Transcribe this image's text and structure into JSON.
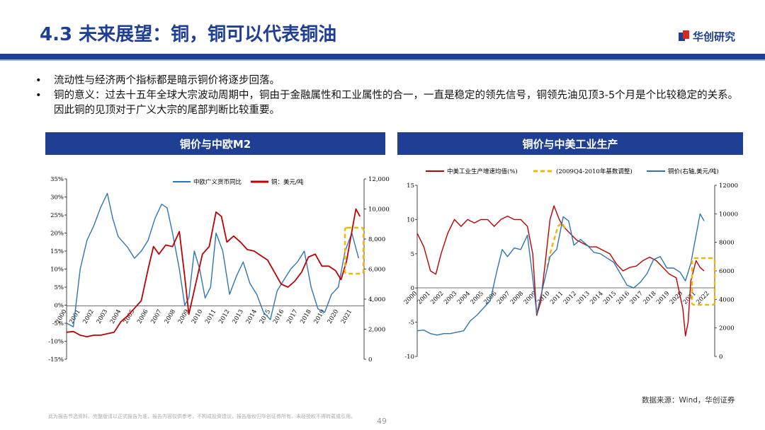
{
  "header": {
    "title": "4.3 未来展望：铜，铜可以代表铜油",
    "logo_text": "华创研究"
  },
  "bullets": [
    "流动性与经济两个指标都是暗示铜价将逐步回落。",
    "铜的意义：过去十五年全球大宗波动周期中，铜由于金融属性和工业属性的合一，一直是稳定的领先信号，铜领先油见顶3-5个月是个比较稳定的关系。因此铜的见顶对于广义大宗的尾部判断比较重要。"
  ],
  "panels": {
    "left_title": "铜价与中欧M2",
    "right_title": "铜价与中美工业生产"
  },
  "colors": {
    "blue": "#2e75b6",
    "red": "#c00000",
    "yellow": "#f2b705",
    "brand": "#1f3f95"
  },
  "chart_data": [
    {
      "type": "line",
      "x_ticks": [
        "2000",
        "2001",
        "2002",
        "2003",
        "2004",
        "2005",
        "2006",
        "2007",
        "2008",
        "2009",
        "2010",
        "2011",
        "2012",
        "2013",
        "2014",
        "2015",
        "2016",
        "2017",
        "2018",
        "2019",
        "2020",
        "2021"
      ],
      "y_left": {
        "ticks": [
          "-15%",
          "-10%",
          "-5%",
          "0%",
          "5%",
          "10%",
          "15%",
          "20%",
          "25%",
          "30%",
          "35%"
        ],
        "range": [
          -15,
          35
        ]
      },
      "y_right": {
        "ticks": [
          "0",
          "2,000",
          "4,000",
          "6,000",
          "8,000",
          "10,000",
          "12,000"
        ],
        "range": [
          0,
          12000
        ]
      },
      "series": [
        {
          "name": "中欧广义货币同比",
          "axis": "left",
          "color": "#2e75b6",
          "x": [
            2000,
            2000.5,
            2001,
            2001.5,
            2002,
            2002.5,
            2003,
            2003.4,
            2003.8,
            2004.5,
            2005,
            2005.5,
            2006,
            2006.5,
            2007,
            2007.4,
            2007.8,
            2008.3,
            2008.7,
            2009,
            2009.4,
            2009.8,
            2010.2,
            2010.6,
            2011,
            2011.5,
            2012,
            2012.5,
            2013,
            2013.5,
            2014,
            2014.5,
            2015,
            2015.5,
            2016,
            2016.5,
            2017,
            2017.5,
            2018,
            2018.5,
            2019,
            2019.5,
            2020,
            2020.5,
            2021,
            2021.5
          ],
          "values": [
            -5,
            -6,
            10,
            18,
            22,
            27,
            31,
            24,
            19,
            16,
            13,
            15,
            18,
            24,
            28,
            27,
            20,
            10,
            0,
            2,
            15,
            10,
            2,
            5,
            20,
            15,
            3,
            8,
            12,
            6,
            3,
            -2,
            -4,
            4,
            7,
            10,
            12,
            15,
            5,
            -1,
            -2,
            3,
            5,
            15,
            20,
            13
          ]
        },
        {
          "name": "铜：美元/吨",
          "axis": "right",
          "color": "#c00000",
          "x": [
            2000,
            2000.5,
            2001,
            2001.5,
            2002,
            2002.5,
            2003,
            2003.5,
            2004,
            2004.5,
            2005,
            2005.5,
            2006,
            2006.4,
            2006.8,
            2007.3,
            2007.8,
            2008.3,
            2008.7,
            2009,
            2009.5,
            2010,
            2010.5,
            2011,
            2011.4,
            2011.8,
            2012.3,
            2012.8,
            2013.3,
            2013.8,
            2014.3,
            2014.8,
            2015.3,
            2015.8,
            2016.3,
            2016.8,
            2017.3,
            2017.8,
            2018.3,
            2018.8,
            2019.3,
            2019.8,
            2020.2,
            2020.6,
            2021,
            2021.3,
            2021.6
          ],
          "values": [
            1800,
            1850,
            1600,
            1500,
            1600,
            1600,
            1700,
            1800,
            2500,
            2900,
            3400,
            3900,
            6000,
            7500,
            7000,
            7600,
            7500,
            8500,
            5500,
            3000,
            5000,
            7000,
            7500,
            9800,
            9500,
            7800,
            8200,
            7800,
            7300,
            7200,
            6900,
            6600,
            5800,
            5000,
            4800,
            5200,
            5800,
            6800,
            7000,
            6200,
            6200,
            5900,
            5300,
            6500,
            8500,
            10000,
            9500
          ]
        }
      ]
    },
    {
      "type": "line",
      "x_ticks": [
        "2000",
        "2001",
        "2002",
        "2003",
        "2004",
        "2005",
        "2006",
        "2007",
        "2008",
        "2009",
        "2010",
        "2011",
        "2012",
        "2013",
        "2014",
        "2015",
        "2016",
        "2017",
        "2018",
        "2019",
        "2020",
        "2021",
        "2022"
      ],
      "y_left": {
        "ticks": [
          "-10",
          "-5",
          "0",
          "5",
          "10",
          "15"
        ],
        "range": [
          -10,
          15
        ]
      },
      "y_right": {
        "ticks": [
          "0",
          "2000",
          "4000",
          "6000",
          "8000",
          "10000",
          "12000"
        ],
        "range": [
          0,
          12000
        ]
      },
      "series": [
        {
          "name": "中美工业生产增速均值(%)",
          "axis": "left",
          "color": "#c00000",
          "x": [
            2000,
            2000.5,
            2001,
            2001.4,
            2001.8,
            2002.3,
            2002.8,
            2003.3,
            2003.8,
            2004.3,
            2004.8,
            2005.3,
            2005.8,
            2006.3,
            2006.8,
            2007.3,
            2007.8,
            2008.3,
            2008.7,
            2009,
            2009.3,
            2009.6,
            2010,
            2010.3,
            2010.7,
            2011,
            2011.5,
            2012,
            2012.5,
            2013,
            2013.5,
            2014,
            2014.5,
            2015,
            2015.5,
            2016,
            2016.5,
            2017,
            2017.5,
            2018,
            2018.5,
            2019,
            2019.5,
            2020,
            2020.2,
            2020.4,
            2020.6,
            2021,
            2021.3,
            2021.6
          ],
          "values": [
            8,
            6,
            2.5,
            2,
            5,
            8,
            10,
            9,
            10,
            9.5,
            10,
            10,
            9,
            10,
            10.5,
            10,
            10,
            9,
            5,
            -4,
            -2,
            3,
            10,
            12,
            10,
            9,
            8,
            7,
            6.5,
            6,
            6,
            5.5,
            5,
            3.5,
            2.5,
            3,
            3.2,
            4,
            4.5,
            4,
            3,
            2,
            1.5,
            -3,
            -7,
            -5,
            1,
            4,
            3,
            2.5
          ]
        },
        {
          "name": "(2009Q4-2010年基数调整)",
          "axis": "left",
          "color": "#f2b705",
          "dashed": true,
          "x": [
            2009.8,
            2010,
            2010.3,
            2010.6,
            2010.9,
            2011.2
          ],
          "values": [
            3,
            5,
            7,
            9,
            9.5,
            8.5
          ]
        },
        {
          "name": "铜价(右轴,美元/吨)",
          "axis": "right",
          "color": "#2e75b6",
          "x": [
            2000,
            2000.5,
            2001,
            2001.5,
            2002,
            2002.5,
            2003,
            2003.5,
            2004,
            2004.5,
            2005,
            2005.5,
            2006,
            2006.4,
            2006.8,
            2007.3,
            2007.8,
            2008.3,
            2008.7,
            2009,
            2009.5,
            2010,
            2010.5,
            2011,
            2011.4,
            2011.8,
            2012.3,
            2012.8,
            2013.3,
            2013.8,
            2014.3,
            2014.8,
            2015.3,
            2015.8,
            2016.3,
            2016.8,
            2017.3,
            2017.8,
            2018.3,
            2018.8,
            2019.3,
            2019.8,
            2020.2,
            2020.6,
            2021,
            2021.3,
            2021.6
          ],
          "values": [
            1800,
            1850,
            1600,
            1500,
            1600,
            1600,
            1700,
            1800,
            2500,
            2900,
            3400,
            3900,
            6000,
            7500,
            7000,
            7600,
            7500,
            8500,
            5500,
            3000,
            5000,
            7000,
            7500,
            9800,
            9500,
            7800,
            8200,
            7800,
            7300,
            7200,
            6900,
            6600,
            5800,
            5000,
            4800,
            5200,
            5800,
            6800,
            7000,
            6200,
            6200,
            5900,
            5300,
            6500,
            8500,
            10000,
            9500
          ]
        }
      ]
    }
  ],
  "footer": {
    "source": "数据来源：Wind，华创证券",
    "disclaimer": "此为报告节选资料，完整版请以正式报告为准，报告内容仅供参考，不构成投资建议，报告版权归华创证券所有，未经授权不得转载或引用。",
    "page_number": "49"
  }
}
